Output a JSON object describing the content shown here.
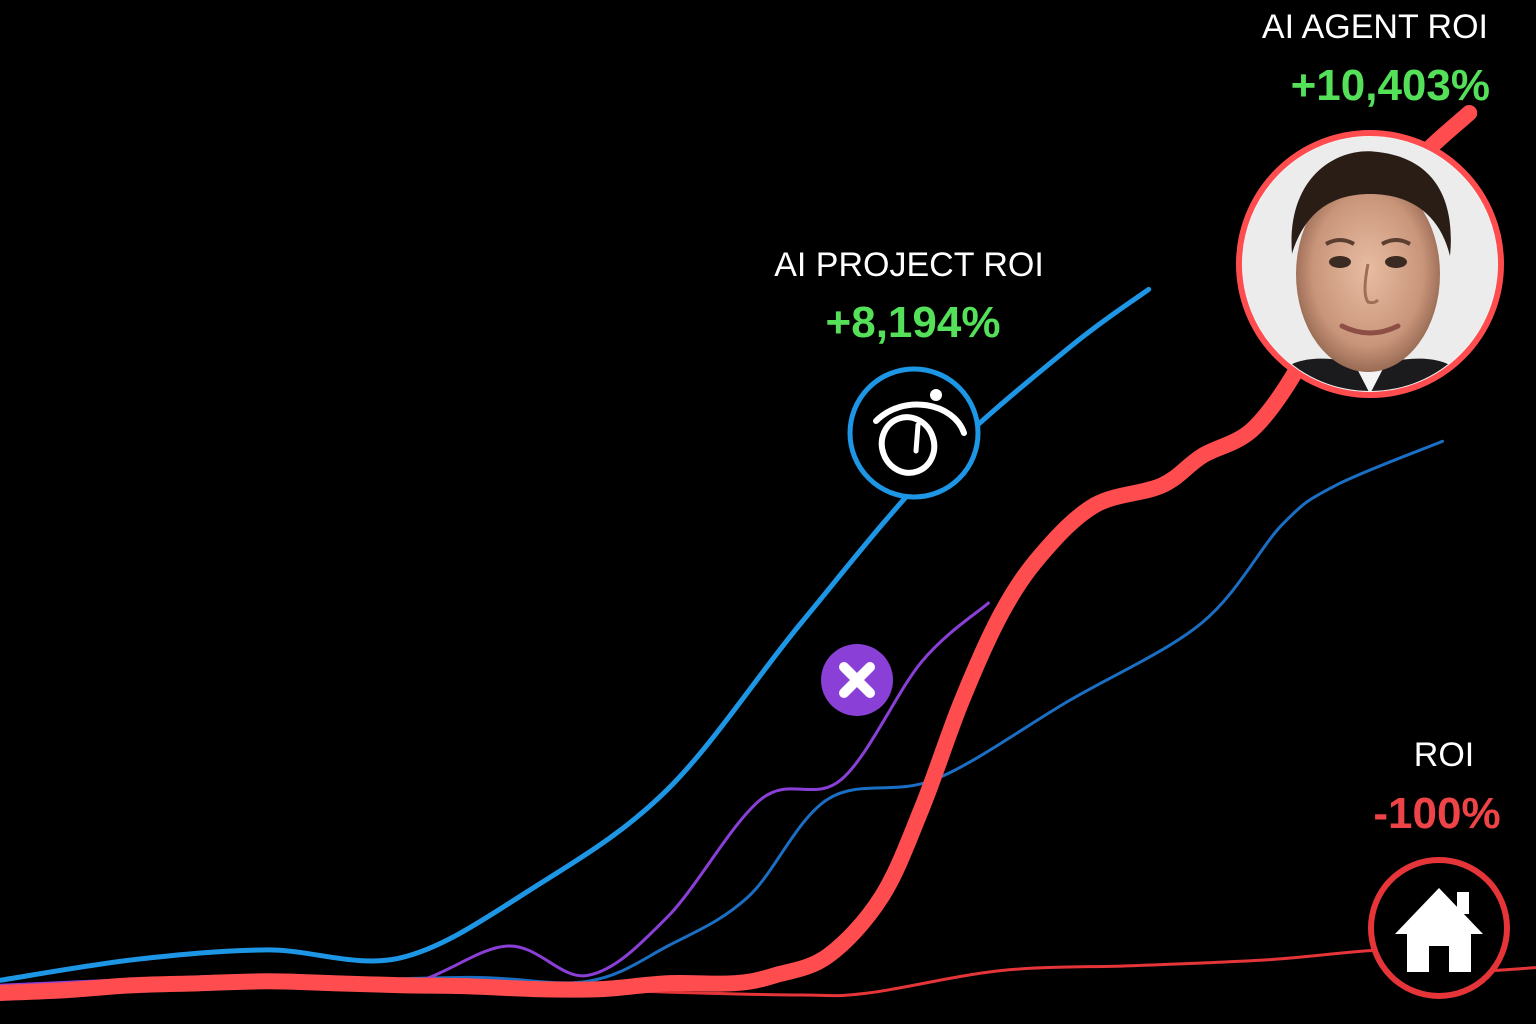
{
  "chart_data": {
    "type": "line",
    "title": "",
    "xlabel": "",
    "ylabel": "",
    "grid": false,
    "legend": "none",
    "series": [
      {
        "name": "AI AGENT ROI",
        "label": "AI AGENT ROI",
        "value_text": "+10,403%",
        "color": "#ff4d4f",
        "value_color": "#55e05a",
        "marker": "portrait-photo",
        "points": [
          [
            0.0,
            0.2
          ],
          [
            0.5,
            0.5
          ],
          [
            1.0,
            1.0
          ],
          [
            1.5,
            1.2
          ],
          [
            2.0,
            1.4
          ],
          [
            2.5,
            1.2
          ],
          [
            3.0,
            1.0
          ],
          [
            3.5,
            0.9
          ],
          [
            4.0,
            0.6
          ],
          [
            4.5,
            0.6
          ],
          [
            5.0,
            1.2
          ],
          [
            5.5,
            1.2
          ],
          [
            5.8,
            2.0
          ],
          [
            6.2,
            4.0
          ],
          [
            6.6,
            10.0
          ],
          [
            6.9,
            19.0
          ],
          [
            7.2,
            30.0
          ],
          [
            7.5,
            39.0
          ],
          [
            7.8,
            45.0
          ],
          [
            8.2,
            50.0
          ],
          [
            8.7,
            52.0
          ],
          [
            9.0,
            55.0
          ],
          [
            9.4,
            58.0
          ],
          [
            9.8,
            66.0
          ],
          [
            10.2,
            78.0
          ],
          [
            10.6,
            85.0
          ],
          [
            11.0,
            90.0
          ]
        ]
      },
      {
        "name": "AI PROJECT ROI",
        "label": "AI PROJECT ROI",
        "value_text": "+8,194%",
        "color": "#1e96e6",
        "value_color": "#55e05a",
        "marker": "ai-project-logo",
        "points": [
          [
            0.0,
            1.5
          ],
          [
            1.0,
            3.6
          ],
          [
            2.0,
            4.6
          ],
          [
            3.0,
            3.8
          ],
          [
            4.0,
            11.0
          ],
          [
            5.0,
            21.0
          ],
          [
            6.0,
            38.0
          ],
          [
            7.0,
            54.0
          ],
          [
            8.0,
            66.0
          ],
          [
            8.6,
            72.0
          ]
        ]
      },
      {
        "name": "",
        "label": "",
        "value_text": "",
        "color": "#1a6fc4",
        "marker": "none",
        "points": [
          [
            0.0,
            0.5
          ],
          [
            2.0,
            1.2
          ],
          [
            3.5,
            1.8
          ],
          [
            4.4,
            1.4
          ],
          [
            5.0,
            5.0
          ],
          [
            5.6,
            10.0
          ],
          [
            6.2,
            20.0
          ],
          [
            7.0,
            22.0
          ],
          [
            8.0,
            30.0
          ],
          [
            9.0,
            38.0
          ],
          [
            9.6,
            48.0
          ],
          [
            10.0,
            52.0
          ],
          [
            10.8,
            56.5
          ]
        ]
      },
      {
        "name": "",
        "label": "",
        "value_text": "",
        "color": "#8a3fd6",
        "marker": "x-badge",
        "points": [
          [
            0.0,
            1.0
          ],
          [
            2.0,
            2.0
          ],
          [
            3.0,
            1.0
          ],
          [
            3.8,
            5.0
          ],
          [
            4.4,
            2.0
          ],
          [
            5.0,
            8.0
          ],
          [
            5.7,
            20.0
          ],
          [
            6.3,
            22.0
          ],
          [
            6.9,
            34.0
          ],
          [
            7.4,
            40.0
          ]
        ]
      },
      {
        "name": "ROI",
        "label": "ROI",
        "value_text": "-100%",
        "color": "#e53539",
        "value_color": "#ee4448",
        "marker": "house-icon",
        "points": [
          [
            0.0,
            0.3
          ],
          [
            2.0,
            0.8
          ],
          [
            3.0,
            1.3
          ],
          [
            4.0,
            0.8
          ],
          [
            5.0,
            0.3
          ],
          [
            6.0,
            0.0
          ],
          [
            6.5,
            0.2
          ],
          [
            7.5,
            2.5
          ],
          [
            8.5,
            3.0
          ],
          [
            9.5,
            3.6
          ],
          [
            10.5,
            4.6
          ],
          [
            11.0,
            2.6
          ],
          [
            11.5,
            2.8
          ]
        ]
      }
    ]
  }
}
